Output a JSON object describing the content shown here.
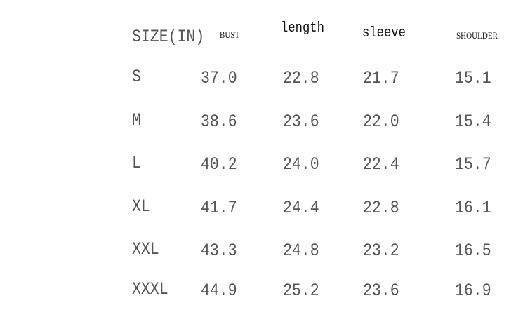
{
  "headers": {
    "size": "SIZE(IN)",
    "bust": "BUST",
    "length": "length",
    "sleeve": "sleeve",
    "shoulder": "SHOULDER"
  },
  "rows": [
    {
      "size": "S",
      "bust": "37.0",
      "length": "22.8",
      "sleeve": "21.7",
      "shoulder": "15.1"
    },
    {
      "size": "M",
      "bust": "38.6",
      "length": "23.6",
      "sleeve": "22.0",
      "shoulder": "15.4"
    },
    {
      "size": "L",
      "bust": "40.2",
      "length": "24.0",
      "sleeve": "22.4",
      "shoulder": "15.7"
    },
    {
      "size": "XL",
      "bust": "41.7",
      "length": "24.4",
      "sleeve": "22.8",
      "shoulder": "16.1"
    },
    {
      "size": "XXL",
      "bust": "43.3",
      "length": "24.8",
      "sleeve": "23.2",
      "shoulder": "16.5"
    },
    {
      "size": "XXXL",
      "bust": "44.9",
      "length": "25.2",
      "sleeve": "23.6",
      "shoulder": "16.9"
    }
  ]
}
